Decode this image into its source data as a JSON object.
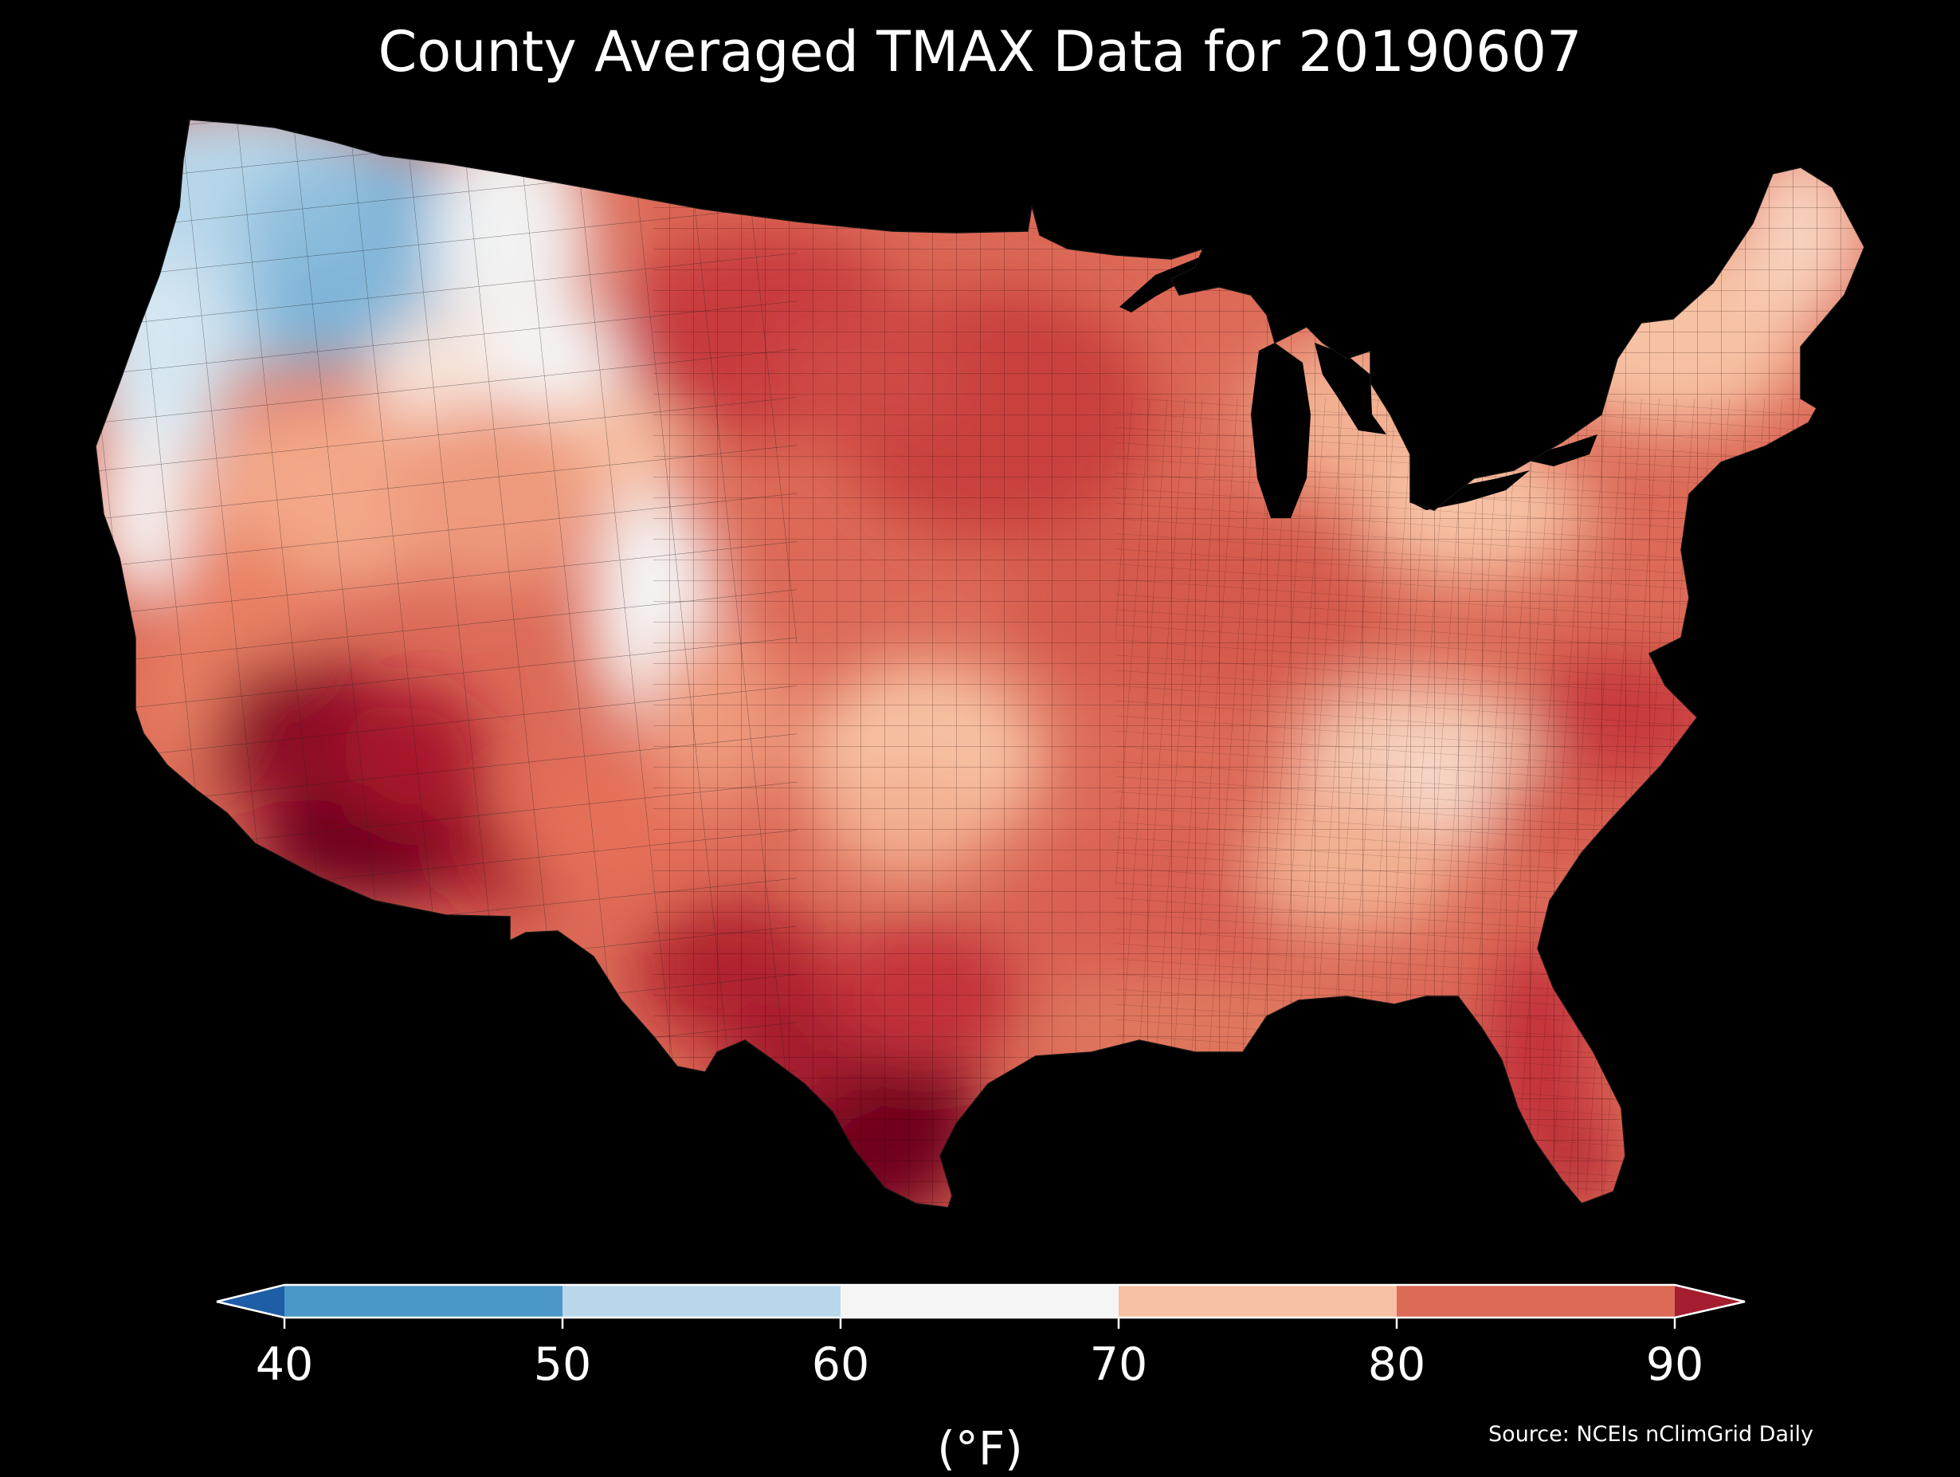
{
  "title": "County Averaged TMAX Data for 20190607",
  "source_note": "Source: NCEIs nClimGrid Daily",
  "colorbar": {
    "unit_label": "(°F)",
    "ticks": [
      "40",
      "50",
      "60",
      "70",
      "80",
      "90"
    ],
    "bins": [
      {
        "range": "<40",
        "color": "#1e5ea6"
      },
      {
        "range": "40-50",
        "color": "#4b98c8"
      },
      {
        "range": "50-60",
        "color": "#b8d7ea"
      },
      {
        "range": "60-70",
        "color": "#f5f5f5"
      },
      {
        "range": "70-80",
        "color": "#f7c1a3"
      },
      {
        "range": "80-90",
        "color": "#dc6a57"
      },
      {
        "range": ">90",
        "color": "#a41e2f"
      }
    ]
  },
  "map": {
    "background": "#000000",
    "region": "Contiguous United States counties",
    "hotter_color": "#6d001e"
  }
}
